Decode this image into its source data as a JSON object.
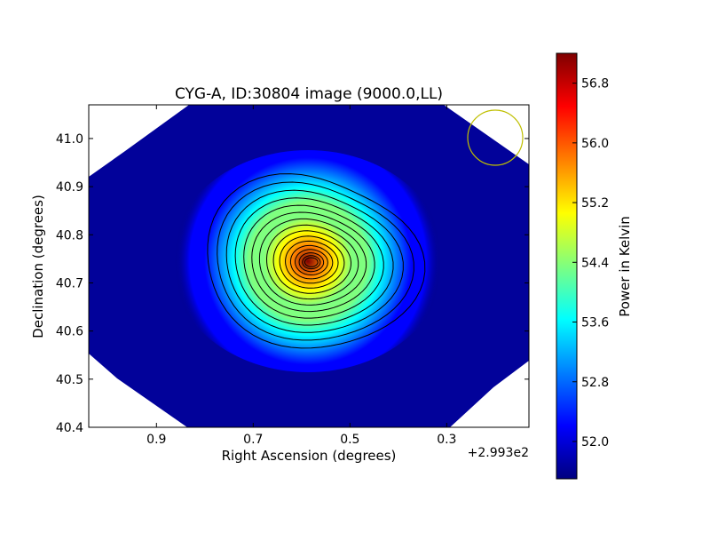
{
  "chart_data": {
    "type": "heatmap",
    "title": "CYG-A, ID:30804 image (9000.0,LL)",
    "xlabel": "Right Ascension (degrees)",
    "ylabel": "Declination (degrees)",
    "x_offset_label": "+2.993e2",
    "xlim": [
      1.04,
      0.13
    ],
    "ylim": [
      40.4,
      41.07
    ],
    "x_ticks": [
      {
        "value": 0.9,
        "label": "0.9"
      },
      {
        "value": 0.7,
        "label": "0.7"
      },
      {
        "value": 0.5,
        "label": "0.5"
      },
      {
        "value": 0.3,
        "label": "0.3"
      }
    ],
    "y_ticks": [
      {
        "value": 40.4,
        "label": "40.4"
      },
      {
        "value": 40.5,
        "label": "40.5"
      },
      {
        "value": 40.6,
        "label": "40.6"
      },
      {
        "value": 40.7,
        "label": "40.7"
      },
      {
        "value": 40.8,
        "label": "40.8"
      },
      {
        "value": 40.9,
        "label": "40.9"
      },
      {
        "value": 41.0,
        "label": "41.0"
      }
    ],
    "source_peak": {
      "ra": 0.58,
      "dec": 40.743,
      "value": 57.2
    },
    "background_level": 51.6,
    "beam_circle": {
      "ra": 0.21,
      "dec": 41.0,
      "color": "#bfbf00"
    },
    "colorbar": {
      "label": "Power in Kelvin",
      "range": [
        51.5,
        57.2
      ],
      "ticks": [
        {
          "value": 52.0,
          "label": "52.0"
        },
        {
          "value": 52.8,
          "label": "52.8"
        },
        {
          "value": 53.6,
          "label": "53.6"
        },
        {
          "value": 54.4,
          "label": "54.4"
        },
        {
          "value": 55.2,
          "label": "55.2"
        },
        {
          "value": 56.0,
          "label": "56.0"
        },
        {
          "value": 56.8,
          "label": "56.8"
        }
      ]
    },
    "colormap": [
      "#00007f",
      "#0000ff",
      "#007fff",
      "#00ffff",
      "#7fff7f",
      "#ffff00",
      "#ff7f00",
      "#ff0000",
      "#7f0000"
    ],
    "contour_color": "#000000"
  }
}
